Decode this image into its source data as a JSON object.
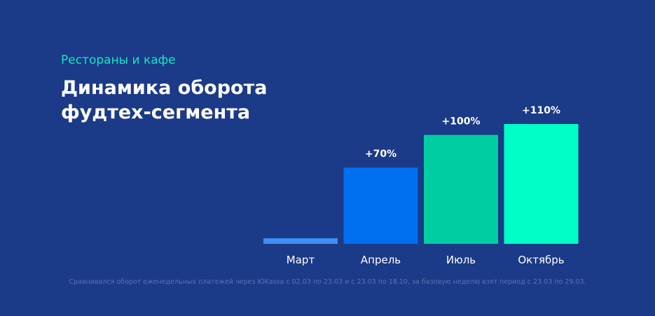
{
  "header": {
    "kicker": "Рестораны и кафе",
    "title_line1": "Динамика оборота",
    "title_line2": "фудтех-сегмента"
  },
  "chart_data": {
    "type": "bar",
    "categories": [
      "Март",
      "Апрель",
      "Июль",
      "Октябрь"
    ],
    "values": [
      0,
      70,
      100,
      110
    ],
    "data_labels": [
      "",
      "+70%",
      "+100%",
      "+110%"
    ],
    "bar_colors": [
      "#3d8ff5",
      "#0070f0",
      "#00cea2",
      "#00ffc6"
    ],
    "title": "",
    "xlabel": "",
    "ylabel": "",
    "ylim": [
      0,
      110
    ],
    "grid": false
  },
  "footnote": "Сравнивался оборот еженедельных платежей через ЮKassa с 02.03 по 23.03 и с 23.03 по 18.10, за базовую неделю взят период с 23.03 по 29.03.",
  "colors": {
    "background": "#1b3a87",
    "accent": "#14e7c1",
    "text": "#ffffff",
    "muted": "#5a74b2"
  }
}
